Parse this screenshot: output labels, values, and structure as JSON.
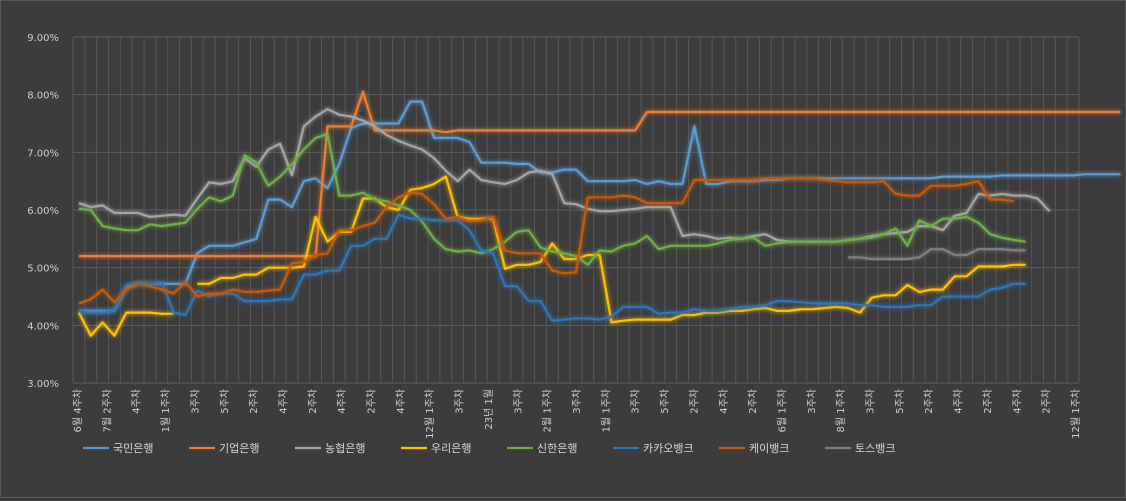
{
  "chart_data": {
    "type": "line",
    "title": "",
    "xlabel": "",
    "ylabel": "",
    "ylim": [
      3.0,
      9.0
    ],
    "y_ticks": [
      "3.00%",
      "4.00%",
      "5.00%",
      "6.00%",
      "7.00%",
      "8.00%",
      "9.00%"
    ],
    "grid": "both",
    "legend_position": "bottom",
    "x_tick_labels": [
      "6월 4주차",
      "7월 2주차",
      "4주차",
      "1월 1주차",
      "3주차",
      "5주차",
      "2주차",
      "4주차",
      "2주차",
      "4주차",
      "2주차",
      "4주차",
      "12월 1주차",
      "3주차",
      "23년 1월",
      "3주차",
      "2월 1주차",
      "3주차",
      "1월 1주차",
      "3주차",
      "5주차",
      "2주차",
      "4주차",
      "2주차",
      "6월 1주차",
      "3주차",
      "8월 1주차",
      "3주차",
      "5주차",
      "2주차",
      "4주차",
      "2주차",
      "4주차",
      "2주차",
      "12월 1주차"
    ],
    "series": [
      {
        "name": "국민은행",
        "color": "#5b9bd5",
        "start": 0,
        "values": [
          4.25,
          4.25,
          4.25,
          4.25,
          4.65,
          4.72,
          4.72,
          4.72,
          4.72,
          4.72,
          5.25,
          5.38,
          5.38,
          5.38,
          5.44,
          5.5,
          6.18,
          6.18,
          6.05,
          6.5,
          6.55,
          6.38,
          6.8,
          7.42,
          7.5,
          7.5,
          7.5,
          7.5,
          7.88,
          7.88,
          7.25,
          7.25,
          7.25,
          7.18,
          6.82,
          6.82,
          6.82,
          6.8,
          6.8,
          6.65,
          6.65,
          6.7,
          6.7,
          6.5,
          6.5,
          6.5,
          6.5,
          6.52,
          6.45,
          6.5,
          6.45,
          6.45,
          7.45,
          6.45,
          6.45,
          6.5,
          6.5,
          6.5,
          6.52,
          6.52,
          6.55,
          6.55,
          6.55,
          6.55,
          6.55,
          6.55,
          6.55,
          6.55,
          6.55,
          6.55,
          6.55,
          6.55,
          6.55,
          6.58,
          6.58,
          6.58,
          6.58,
          6.58,
          6.6,
          6.6,
          6.6,
          6.6,
          6.6,
          6.6,
          6.6,
          6.62,
          6.62,
          6.62,
          6.62
        ]
      },
      {
        "name": "기업은행",
        "color": "#ed7d31",
        "start": 0,
        "values": [
          5.2,
          5.2,
          5.2,
          5.2,
          5.2,
          5.2,
          5.2,
          5.2,
          5.2,
          5.2,
          5.2,
          5.2,
          5.2,
          5.2,
          5.2,
          5.2,
          5.2,
          5.2,
          5.2,
          5.2,
          5.2,
          7.45,
          7.45,
          7.45,
          8.05,
          7.38,
          7.38,
          7.38,
          7.38,
          7.38,
          7.38,
          7.35,
          7.38,
          7.38,
          7.38,
          7.38,
          7.38,
          7.38,
          7.38,
          7.38,
          7.38,
          7.38,
          7.38,
          7.38,
          7.38,
          7.38,
          7.38,
          7.38,
          7.7,
          7.7,
          7.7,
          7.7,
          7.7,
          7.7,
          7.7,
          7.7,
          7.7,
          7.7,
          7.7,
          7.7,
          7.7,
          7.7,
          7.7,
          7.7,
          7.7,
          7.7,
          7.7,
          7.7,
          7.7,
          7.7,
          7.7,
          7.7,
          7.7,
          7.7,
          7.7,
          7.7,
          7.7,
          7.7,
          7.7,
          7.7,
          7.7,
          7.7,
          7.7,
          7.7,
          7.7,
          7.7,
          7.7,
          7.7,
          7.7
        ]
      },
      {
        "name": "농협은행",
        "color": "#a5a5a5",
        "start": 0,
        "values": [
          6.12,
          6.05,
          6.08,
          5.95,
          5.95,
          5.95,
          5.88,
          5.9,
          5.92,
          5.9,
          6.2,
          6.48,
          6.45,
          6.5,
          6.9,
          6.75,
          7.05,
          7.15,
          6.6,
          7.45,
          7.62,
          7.75,
          7.65,
          7.62,
          7.55,
          7.45,
          7.3,
          7.2,
          7.12,
          7.05,
          6.9,
          6.68,
          6.5,
          6.7,
          6.52,
          6.48,
          6.45,
          6.52,
          6.65,
          6.68,
          6.62,
          6.12,
          6.1,
          6.02,
          5.98,
          5.98,
          6.0,
          6.02,
          6.05,
          6.05,
          6.05,
          5.55,
          5.58,
          5.55,
          5.5,
          5.52,
          5.5,
          5.55,
          5.58,
          5.48,
          5.45,
          5.45,
          5.45,
          5.45,
          5.45,
          5.48,
          5.5,
          5.55,
          5.58,
          5.6,
          5.62,
          5.72,
          5.72,
          5.65,
          5.9,
          5.95,
          6.28,
          6.25,
          6.28,
          6.25,
          6.25,
          6.2,
          5.98
        ]
      },
      {
        "name": "우리은행",
        "color": "#ffc000",
        "start": 0,
        "values": [
          4.22,
          3.82,
          4.05,
          3.82,
          4.22,
          4.22,
          4.22,
          4.2,
          4.2,
          null,
          4.72,
          4.72,
          4.82,
          4.82,
          4.88,
          4.88,
          5.0,
          5.0,
          5.0,
          5.02,
          5.88,
          5.45,
          5.62,
          5.62,
          6.2,
          6.2,
          6.05,
          6.0,
          6.35,
          6.38,
          6.45,
          6.58,
          5.88,
          5.85,
          5.85,
          5.85,
          4.98,
          5.05,
          5.05,
          5.1,
          5.42,
          5.15,
          5.15,
          5.22,
          5.22,
          4.05,
          4.08,
          4.1,
          4.1,
          4.1,
          4.1,
          4.18,
          4.18,
          4.22,
          4.22,
          4.25,
          4.25,
          4.28,
          4.3,
          4.25,
          4.25,
          4.28,
          4.28,
          4.3,
          4.32,
          4.3,
          4.22,
          4.48,
          4.52,
          4.52,
          4.7,
          4.58,
          4.62,
          4.62,
          4.85,
          4.85,
          5.02,
          5.02,
          5.02,
          5.05,
          5.05
        ]
      },
      {
        "name": "신한은행",
        "color": "#70ad47",
        "start": 0,
        "values": [
          6.02,
          6.0,
          5.72,
          5.68,
          5.65,
          5.65,
          5.75,
          5.72,
          5.75,
          5.78,
          6.02,
          6.22,
          6.15,
          6.25,
          6.95,
          6.82,
          6.42,
          6.58,
          6.8,
          7.05,
          7.25,
          7.32,
          6.25,
          6.25,
          6.3,
          6.18,
          6.15,
          6.08,
          6.0,
          5.8,
          5.5,
          5.32,
          5.28,
          5.3,
          5.25,
          5.32,
          5.45,
          5.62,
          5.65,
          5.35,
          5.28,
          5.25,
          5.2,
          5.05,
          5.3,
          5.28,
          5.38,
          5.42,
          5.55,
          5.32,
          5.38,
          5.38,
          5.38,
          5.38,
          5.42,
          5.48,
          5.5,
          5.52,
          5.38,
          5.42,
          5.45,
          5.45,
          5.45,
          5.45,
          5.45,
          5.48,
          5.5,
          5.52,
          5.58,
          5.68,
          5.38,
          5.82,
          5.72,
          5.85,
          5.85,
          5.88,
          5.78,
          5.58,
          5.52,
          5.48,
          5.45
        ]
      },
      {
        "name": "카카오뱅크",
        "color": "#2e75b6",
        "start": 0,
        "values": [
          4.25,
          4.22,
          4.22,
          4.25,
          4.7,
          4.75,
          4.72,
          4.75,
          4.22,
          4.18,
          4.6,
          4.5,
          4.55,
          4.55,
          4.42,
          4.42,
          4.42,
          4.45,
          4.45,
          4.88,
          4.88,
          4.95,
          4.95,
          5.38,
          5.38,
          5.5,
          5.5,
          5.92,
          5.85,
          5.85,
          5.82,
          5.82,
          5.82,
          5.65,
          5.3,
          5.25,
          4.68,
          4.68,
          4.42,
          4.42,
          4.08,
          4.1,
          4.12,
          4.12,
          4.1,
          4.15,
          4.32,
          4.32,
          4.32,
          4.2,
          4.22,
          4.22,
          4.28,
          4.25,
          4.25,
          4.28,
          4.32,
          4.32,
          4.35,
          4.42,
          4.42,
          4.4,
          4.38,
          4.38,
          4.38,
          4.38,
          4.35,
          4.35,
          4.32,
          4.32,
          4.32,
          4.35,
          4.35,
          4.5,
          4.5,
          4.5,
          4.5,
          4.62,
          4.65,
          4.72,
          4.72
        ]
      },
      {
        "name": "케이뱅크",
        "color": "#c55a11",
        "start": 0,
        "values": [
          4.38,
          4.45,
          4.62,
          4.4,
          4.62,
          4.72,
          4.68,
          4.62,
          4.55,
          4.75,
          4.5,
          4.55,
          4.55,
          4.62,
          4.58,
          4.58,
          4.6,
          4.62,
          5.08,
          5.1,
          5.22,
          5.25,
          5.65,
          5.65,
          5.72,
          5.78,
          6.05,
          6.22,
          6.3,
          6.28,
          6.1,
          5.85,
          5.88,
          5.8,
          5.82,
          5.88,
          5.3,
          5.25,
          5.25,
          5.25,
          4.95,
          4.9,
          4.92,
          6.22,
          6.22,
          6.22,
          6.25,
          6.22,
          6.12,
          6.12,
          6.12,
          6.12,
          6.52,
          6.52,
          6.52,
          6.52,
          6.52,
          6.52,
          6.55,
          6.55,
          6.55,
          6.55,
          6.55,
          6.52,
          6.5,
          6.48,
          6.48,
          6.48,
          6.5,
          6.28,
          6.25,
          6.25,
          6.42,
          6.42,
          6.42,
          6.45,
          6.5,
          6.18,
          6.18,
          6.15
        ]
      },
      {
        "name": "토스뱅크",
        "color": "#7f7f7f",
        "start": 65,
        "values": [
          5.18,
          5.18,
          5.15,
          5.15,
          5.15,
          5.15,
          5.18,
          5.32,
          5.32,
          5.22,
          5.22,
          5.32,
          5.32,
          5.32,
          5.3,
          5.3
        ]
      }
    ]
  }
}
